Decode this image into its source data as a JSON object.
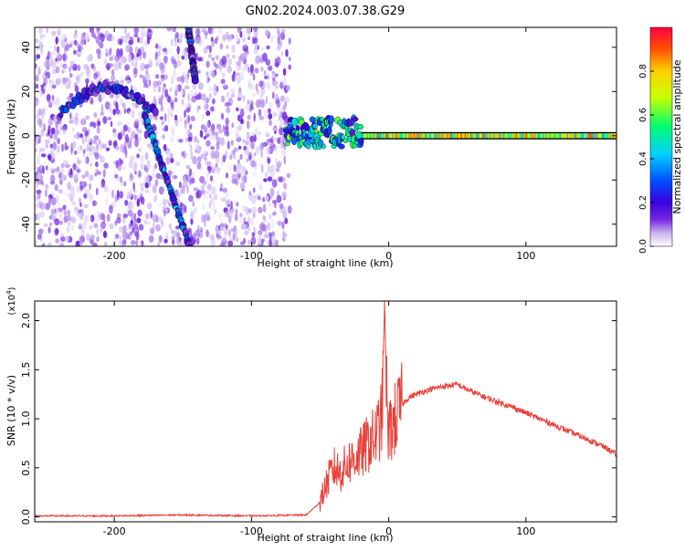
{
  "title": "GN02.2024.003.07.38.G29",
  "chart_data": [
    {
      "type": "heatmap",
      "xlabel": "Height of straight line (km)",
      "ylabel": "Frequency (Hz)",
      "xlim": [
        -258,
        166
      ],
      "ylim": [
        -50,
        49
      ],
      "xticks": [
        -200,
        -100,
        0,
        100
      ],
      "yticks": [
        -40,
        -20,
        0,
        20,
        40
      ],
      "colorbar": {
        "label": "Normalized spectral amplitude",
        "range": [
          0,
          1
        ],
        "ticks": [
          "0.0",
          "0.2",
          "0.4",
          "0.6",
          "0.8"
        ],
        "colormap": [
          "#ffffff",
          "#c9b5f0",
          "#7a2be0",
          "#3a00e0",
          "#0050ff",
          "#00d0ff",
          "#00ff70",
          "#c8ff00",
          "#ffd000",
          "#ff5000",
          "#ff0040"
        ]
      },
      "features": [
        {
          "name": "",
          "x": [
            -258,
            -72
          ],
          "y": [
            -50,
            49
          ],
          "amplitude": 0.15
        },
        {
          "name": "",
          "x": [
            -240,
            -170
          ],
          "y": [
            10,
            22
          ],
          "amplitude": 0.25
        },
        {
          "name": "",
          "x": [
            -178,
            -145
          ],
          "y": [
            10,
            -50
          ],
          "amplitude": 0.3
        },
        {
          "name": "",
          "x": [
            -146,
            -141
          ],
          "y": [
            49,
            25
          ],
          "amplitude": 0.25
        },
        {
          "name": "",
          "x": [
            -75,
            -20
          ],
          "y": [
            -5,
            8
          ],
          "amplitude": 0.4
        },
        {
          "name": "",
          "x": [
            -20,
            166
          ],
          "y": [
            0,
            0
          ],
          "amplitude": 0.8
        }
      ]
    },
    {
      "type": "line",
      "xlabel": "Height of straight line (km)",
      "ylabel": "SNR (10 * v/v)",
      "yscale_label": "(x10",
      "yscale_exponent": "4",
      "xlim": [
        -258,
        166
      ],
      "ylim": [
        -0.05,
        2.2
      ],
      "xticks": [
        -200,
        -100,
        0,
        100
      ],
      "yticks": [
        "0.0",
        "0.5",
        "1.0",
        "1.5",
        "2.0"
      ],
      "series": [
        {
          "color": "#e8413a",
          "x": [
            -258,
            -200,
            -150,
            -100,
            -60,
            -50,
            -45,
            -40,
            -35,
            -30,
            -25,
            -20,
            -15,
            -10,
            -5,
            -3,
            -1,
            0,
            5,
            10,
            15,
            20,
            30,
            40,
            50,
            60,
            70,
            80,
            90,
            100,
            110,
            120,
            130,
            140,
            150,
            160,
            166
          ],
          "y": [
            0.01,
            0.01,
            0.02,
            0.01,
            0.02,
            0.15,
            0.35,
            0.5,
            0.45,
            0.55,
            0.6,
            0.65,
            0.75,
            0.8,
            1.0,
            2.2,
            0.9,
            0.85,
            1.0,
            1.15,
            1.22,
            1.25,
            1.3,
            1.33,
            1.35,
            1.28,
            1.22,
            1.17,
            1.12,
            1.06,
            1.0,
            0.94,
            0.88,
            0.82,
            0.76,
            0.69,
            0.63
          ]
        }
      ]
    }
  ]
}
